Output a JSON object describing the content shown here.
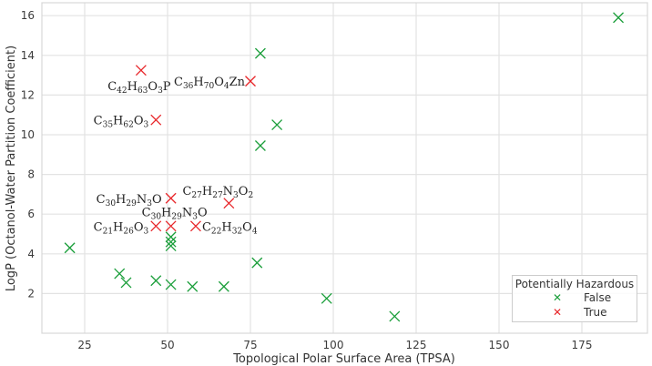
{
  "chart_data": {
    "type": "scatter",
    "title": "",
    "xlabel": "Topological Polar Surface Area (TPSA)",
    "ylabel": "LogP (Octanol-Water Partition Coefficient)",
    "xlim": [
      12,
      194
    ],
    "ylim": [
      0.1,
      16.6
    ],
    "xticks": [
      25,
      50,
      75,
      100,
      125,
      150,
      175
    ],
    "yticks": [
      2,
      4,
      6,
      8,
      10,
      12,
      14,
      16
    ],
    "grid": true,
    "marker": "x",
    "legend": {
      "title": "Potentially Hazardous",
      "position": "lower right",
      "entries": [
        {
          "label": "False",
          "color": "#1a9e3a"
        },
        {
          "label": "True",
          "color": "#e8262a"
        }
      ]
    },
    "series": [
      {
        "name": "False",
        "color": "#1a9e3a",
        "points": [
          {
            "x": 186,
            "y": 15.9
          },
          {
            "x": 78,
            "y": 14.1
          },
          {
            "x": 83,
            "y": 10.5
          },
          {
            "x": 78,
            "y": 9.45
          },
          {
            "x": 20.5,
            "y": 4.3
          },
          {
            "x": 35.5,
            "y": 3.0
          },
          {
            "x": 37.5,
            "y": 2.55
          },
          {
            "x": 46.5,
            "y": 2.65
          },
          {
            "x": 51,
            "y": 2.45
          },
          {
            "x": 57.5,
            "y": 2.35
          },
          {
            "x": 67,
            "y": 2.35
          },
          {
            "x": 77,
            "y": 3.55
          },
          {
            "x": 98,
            "y": 1.75
          },
          {
            "x": 118.5,
            "y": 0.85
          },
          {
            "x": 51,
            "y": 4.85
          },
          {
            "x": 51,
            "y": 4.6
          },
          {
            "x": 51,
            "y": 4.4
          }
        ]
      },
      {
        "name": "True",
        "color": "#e8262a",
        "points": [
          {
            "x": 42,
            "y": 13.25,
            "label": "C42H63O3P",
            "label_html": [
              "C",
              "42",
              "H",
              "63",
              "O",
              "3",
              "P"
            ],
            "lx": -2,
            "ly": 22,
            "anchor": "middle"
          },
          {
            "x": 75,
            "y": 12.7,
            "label": "C36H70O4Zn",
            "label_html": [
              "C",
              "36",
              "H",
              "70",
              "O",
              "4",
              "Zn"
            ],
            "lx": -6,
            "ly": 5,
            "anchor": "end"
          },
          {
            "x": 46.5,
            "y": 10.75,
            "label": "C35H62O3",
            "label_html": [
              "C",
              "35",
              "H",
              "62",
              "O",
              "3",
              ""
            ],
            "lx": -8,
            "ly": 5,
            "anchor": "end"
          },
          {
            "x": 51,
            "y": 6.8,
            "label": "C30H29N3O",
            "label_html": [
              "C",
              "30",
              "H",
              "29",
              "N",
              "3",
              "O"
            ],
            "lx": -10,
            "ly": 5,
            "anchor": "end"
          },
          {
            "x": 68.5,
            "y": 6.55,
            "label": "C27H27N3O2",
            "label_html": [
              "C",
              "27",
              "H",
              "27",
              "N",
              "3",
              "O",
              "2"
            ],
            "lx": -12,
            "ly": -9,
            "anchor": "middle"
          },
          {
            "x": 46.5,
            "y": 5.4,
            "label": "C21H26O3",
            "label_html": [
              "C",
              "21",
              "H",
              "26",
              "O",
              "3",
              ""
            ],
            "lx": -8,
            "ly": 5,
            "anchor": "end"
          },
          {
            "x": 51,
            "y": 5.4,
            "label": "C30H29N3O",
            "label_html": [
              "C",
              "30",
              "H",
              "29",
              "N",
              "3",
              "O"
            ],
            "lx": 4,
            "ly": -11,
            "anchor": "middle"
          },
          {
            "x": 58.5,
            "y": 5.4,
            "label": "C22H32O4",
            "label_html": [
              "C",
              "22",
              "H",
              "32",
              "O",
              "4",
              ""
            ],
            "lx": 7,
            "ly": 5,
            "anchor": "start"
          }
        ]
      }
    ]
  }
}
